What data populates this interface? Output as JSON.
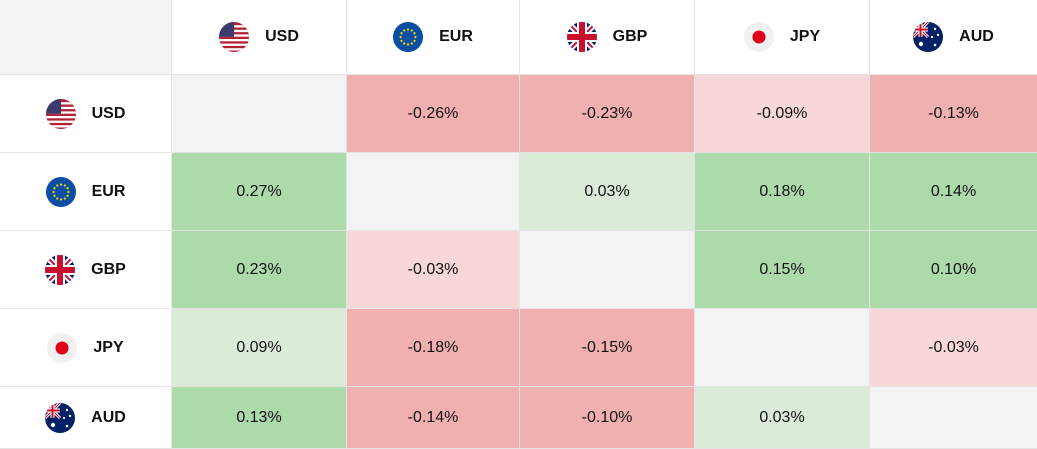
{
  "currencies": [
    {
      "code": "USD",
      "flag_icon": "us-flag-icon"
    },
    {
      "code": "EUR",
      "flag_icon": "eu-flag-icon"
    },
    {
      "code": "GBP",
      "flag_icon": "uk-flag-icon"
    },
    {
      "code": "JPY",
      "flag_icon": "jp-flag-icon"
    },
    {
      "code": "AUD",
      "flag_icon": "au-flag-icon"
    }
  ],
  "colors": {
    "strong_negative": "#f0b0af",
    "light_negative": "#f7d7d8",
    "strong_positive": "#addaab",
    "light_positive": "#daecd8",
    "diagonal": "#f3f3f3"
  },
  "matrix": [
    [
      {
        "value": "",
        "intensity": "diag"
      },
      {
        "value": "-0.26%",
        "intensity": "strong_negative"
      },
      {
        "value": "-0.23%",
        "intensity": "strong_negative"
      },
      {
        "value": "-0.09%",
        "intensity": "light_negative"
      },
      {
        "value": "-0.13%",
        "intensity": "strong_negative"
      }
    ],
    [
      {
        "value": "0.27%",
        "intensity": "strong_positive"
      },
      {
        "value": "",
        "intensity": "diag"
      },
      {
        "value": "0.03%",
        "intensity": "light_positive"
      },
      {
        "value": "0.18%",
        "intensity": "strong_positive"
      },
      {
        "value": "0.14%",
        "intensity": "strong_positive"
      }
    ],
    [
      {
        "value": "0.23%",
        "intensity": "strong_positive"
      },
      {
        "value": "-0.03%",
        "intensity": "light_negative"
      },
      {
        "value": "",
        "intensity": "diag"
      },
      {
        "value": "0.15%",
        "intensity": "strong_positive"
      },
      {
        "value": "0.10%",
        "intensity": "strong_positive"
      }
    ],
    [
      {
        "value": "0.09%",
        "intensity": "light_positive"
      },
      {
        "value": "-0.18%",
        "intensity": "strong_negative"
      },
      {
        "value": "-0.15%",
        "intensity": "strong_negative"
      },
      {
        "value": "",
        "intensity": "diag"
      },
      {
        "value": "-0.03%",
        "intensity": "light_negative"
      }
    ],
    [
      {
        "value": "0.13%",
        "intensity": "strong_positive"
      },
      {
        "value": "-0.14%",
        "intensity": "strong_negative"
      },
      {
        "value": "-0.10%",
        "intensity": "strong_negative"
      },
      {
        "value": "0.03%",
        "intensity": "light_positive"
      },
      {
        "value": "",
        "intensity": "diag"
      }
    ]
  ]
}
